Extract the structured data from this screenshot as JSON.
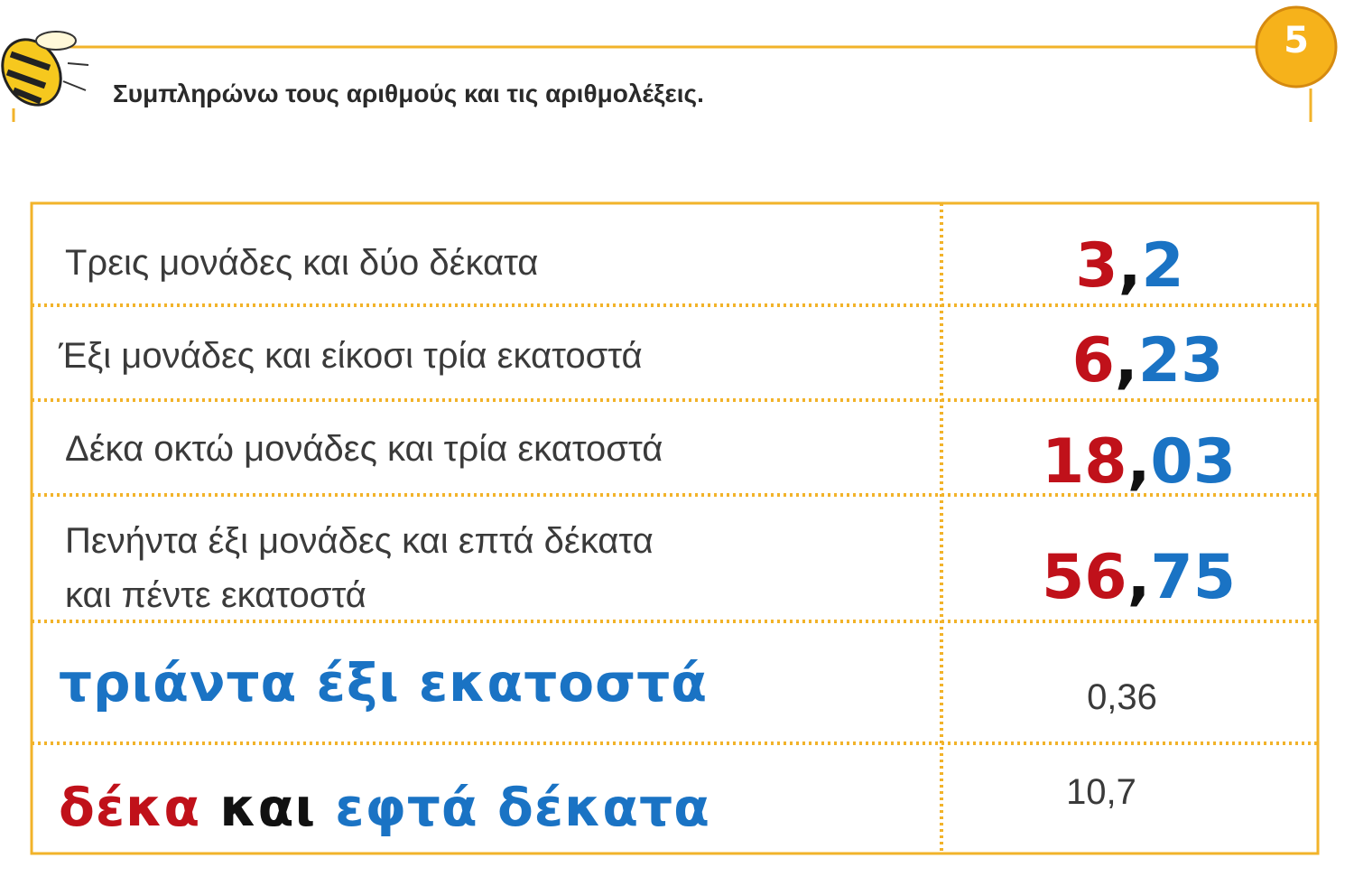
{
  "header": {
    "badge": "5",
    "instruction": "Συμπληρώνω τους αριθμούς και τις αριθμολέξεις."
  },
  "table": {
    "rows": [
      {
        "words": [
          "Τρεις μονάδες και δύο δέκατα"
        ],
        "number": [
          "3",
          ",",
          "2"
        ]
      },
      {
        "words": [
          "Έξι μονάδες και είκοσι τρία εκατοστά"
        ],
        "number": [
          "6",
          ",",
          "23"
        ]
      },
      {
        "words": [
          "Δέκα οκτώ μονάδες και τρία εκατοστά"
        ],
        "number": [
          "18",
          ",",
          "03"
        ]
      },
      {
        "words": [
          "Πενήντα έξι μονάδες και επτά δέκατα",
          "και πέντε εκατοστά"
        ],
        "number": [
          "56",
          ",",
          "75"
        ]
      },
      {
        "words": [
          "τριάντα έξι εκατοστά"
        ],
        "number": [
          "0,36"
        ]
      },
      {
        "words": [
          "δέκα",
          "και",
          "εφτά δέκατα"
        ],
        "number": [
          "10,7"
        ]
      }
    ]
  }
}
